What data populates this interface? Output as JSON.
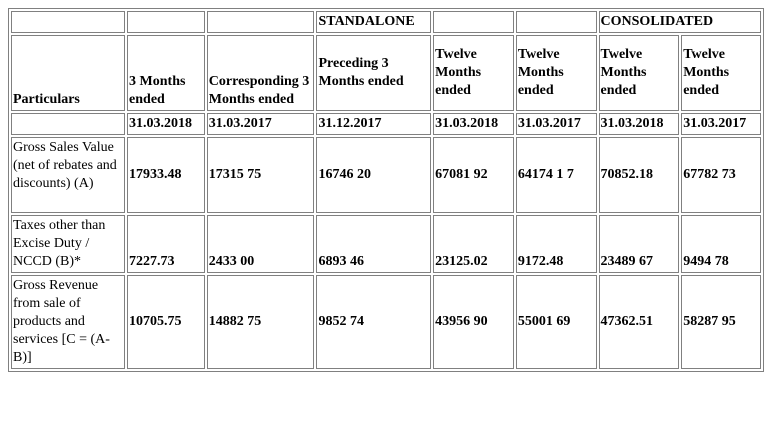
{
  "headers": {
    "standalone": "STANDALONE",
    "consolidated": "CONSOLIDATED"
  },
  "columns": {
    "particulars": "Particulars",
    "col1": "3 Months ended",
    "col2": "Corresponding 3 Months ended",
    "col3": "Preceding 3 Months ended",
    "col4": "Twelve Months ended",
    "col5": "Twelve Months ended",
    "col6": "Twelve Months ended",
    "col7": "Twelve Months ended"
  },
  "dates": [
    "31.03.2018",
    "31.03.2017",
    "31.12.2017",
    "31.03.2018",
    "31.03.2017",
    "31.03.2018",
    "31.03.2017"
  ],
  "rows": [
    {
      "label": "Gross Sales Value (net of rebates and discounts) (A)",
      "values": [
        "17933.48",
        "17315 75",
        "16746 20",
        "67081 92",
        "64174 1 7",
        "70852.18",
        "67782 73"
      ]
    },
    {
      "label": "Taxes other than Excise Duty / NCCD (B)*",
      "values": [
        "7227.73",
        "2433 00",
        "6893 46",
        "23125.02",
        "9172.48",
        "23489 67",
        "9494 78"
      ]
    },
    {
      "label": "Gross Revenue from sale of products and services [C = (A-B)]",
      "values": [
        "10705.75",
        "14882 75",
        "9852 74",
        "43956 90",
        "55001 69",
        "47362.51",
        "58287 95"
      ]
    }
  ]
}
